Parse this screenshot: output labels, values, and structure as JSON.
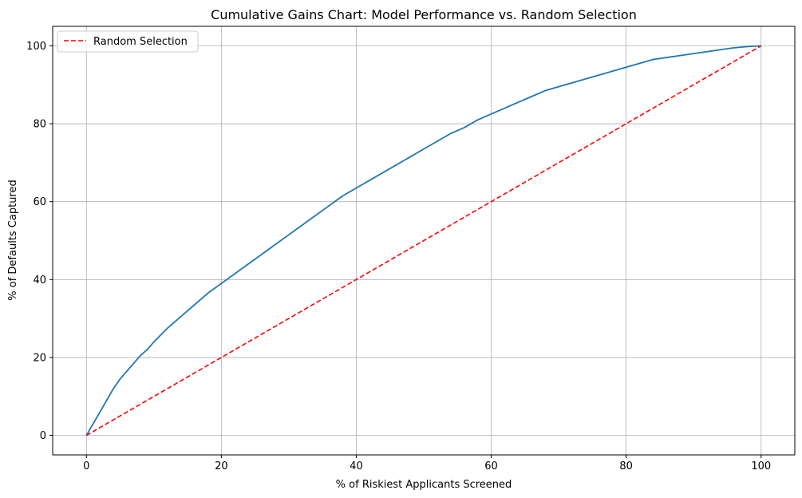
{
  "chart_data": {
    "type": "line",
    "title": "Cumulative Gains Chart: Model Performance vs. Random Selection",
    "xlabel": "% of Riskiest Applicants Screened",
    "ylabel": "% of Defaults Captured",
    "xlim": [
      -5,
      105
    ],
    "ylim": [
      -5,
      105
    ],
    "x_ticks": [
      0,
      20,
      40,
      60,
      80,
      100
    ],
    "y_ticks": [
      0,
      20,
      40,
      60,
      80,
      100
    ],
    "grid": true,
    "legend_position": "top-left",
    "series": [
      {
        "name": "",
        "color": "#1f77b4",
        "style": "solid",
        "x": [
          0,
          1,
          2,
          3,
          4,
          5,
          6,
          7,
          8,
          9,
          10,
          12,
          14,
          16,
          18,
          20,
          22,
          24,
          26,
          28,
          30,
          32,
          34,
          36,
          38,
          40,
          42,
          44,
          46,
          48,
          50,
          52,
          54,
          56,
          58,
          60,
          62,
          64,
          66,
          68,
          70,
          72,
          74,
          76,
          78,
          80,
          82,
          84,
          86,
          88,
          90,
          92,
          94,
          96,
          98,
          100
        ],
        "y": [
          0,
          3,
          6,
          9,
          12,
          14.5,
          16.5,
          18.5,
          20.5,
          22,
          24,
          27.5,
          30.5,
          33.5,
          36.5,
          39,
          41.5,
          44,
          46.5,
          49,
          51.5,
          54,
          56.5,
          59,
          61.5,
          63.5,
          65.5,
          67.5,
          69.5,
          71.5,
          73.5,
          75.5,
          77.5,
          79,
          81,
          82.5,
          84,
          85.5,
          87,
          88.5,
          89.5,
          90.5,
          91.5,
          92.5,
          93.5,
          94.5,
          95.5,
          96.5,
          97,
          97.5,
          98,
          98.5,
          99,
          99.5,
          99.8,
          100
        ]
      },
      {
        "name": "Random Selection",
        "color": "#ff0000",
        "style": "dashed",
        "x": [
          0,
          100
        ],
        "y": [
          0,
          100
        ]
      }
    ]
  }
}
